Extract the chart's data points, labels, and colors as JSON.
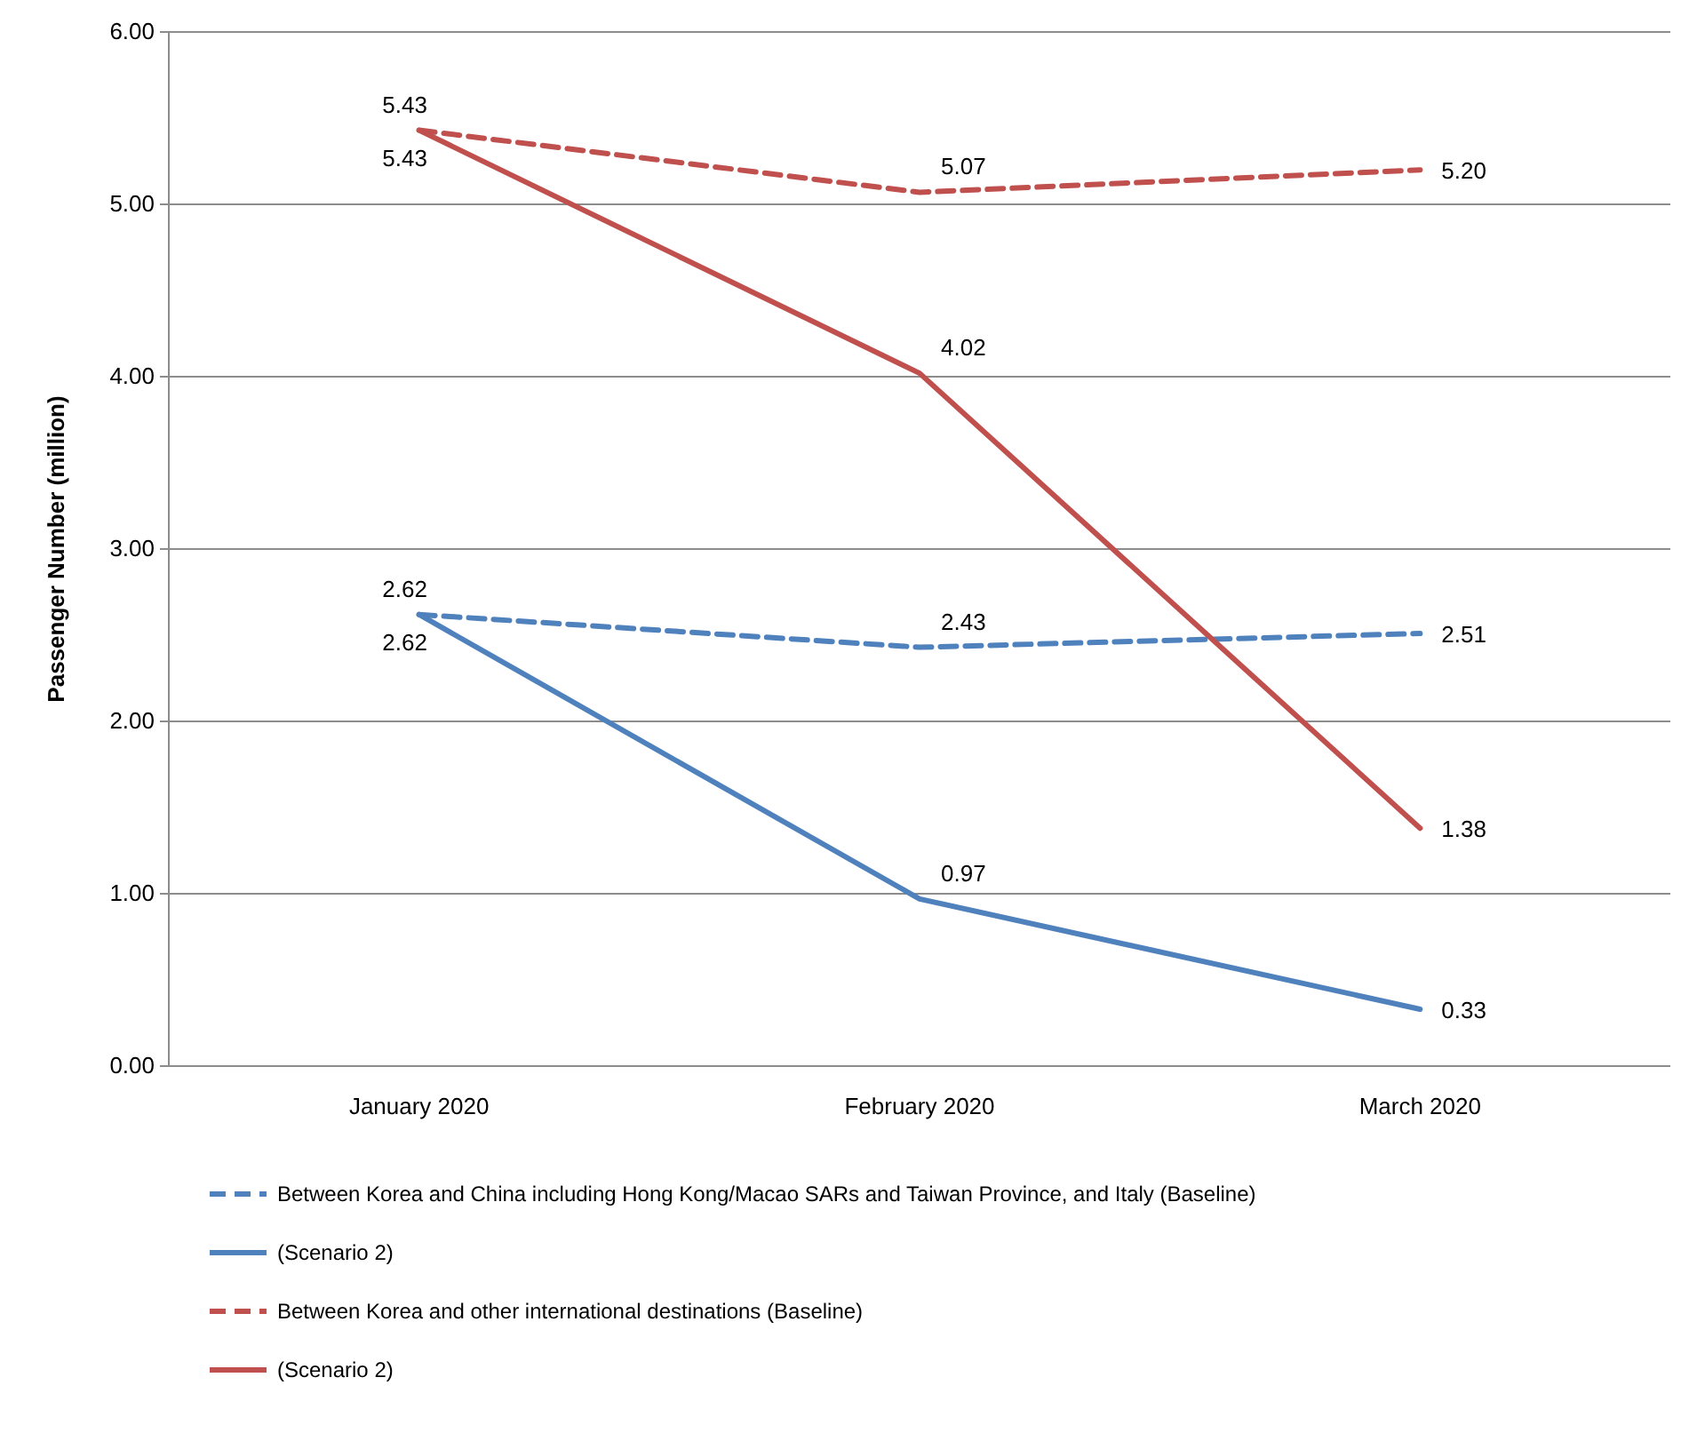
{
  "chart_data": {
    "type": "line",
    "ylabel": "Passenger Number (million)",
    "categories": [
      "January 2020",
      "February 2020",
      "March 2020"
    ],
    "ylim": [
      0,
      6
    ],
    "yticks": [
      {
        "value": 0,
        "label": "0.00"
      },
      {
        "value": 1,
        "label": "1.00"
      },
      {
        "value": 2,
        "label": "2.00"
      },
      {
        "value": 3,
        "label": "3.00"
      },
      {
        "value": 4,
        "label": "4.00"
      },
      {
        "value": 5,
        "label": "5.00"
      },
      {
        "value": 6,
        "label": "6.00"
      }
    ],
    "grid": "y",
    "legend": "bottom",
    "marker": "none",
    "series": [
      {
        "name": "Between Korea and China including Hong Kong/Macao SARs and Taiwan Province, and Italy (Baseline)",
        "color": "#4f81bd",
        "values": [
          2.62,
          2.43,
          2.51
        ],
        "value_labels": [
          "2.62",
          "2.43",
          "2.51"
        ],
        "line_style": "dashed"
      },
      {
        "name": "(Scenario 2)",
        "color": "#4f81bd",
        "values": [
          2.62,
          0.97,
          0.33
        ],
        "value_labels": [
          "2.62",
          "0.97",
          "0.33"
        ],
        "line_style": "solid"
      },
      {
        "name": "Between Korea and other international destinations (Baseline)",
        "color": "#c0504d",
        "values": [
          5.43,
          5.07,
          5.2
        ],
        "value_labels": [
          "5.43",
          "5.07",
          "5.20"
        ],
        "line_style": "dashed"
      },
      {
        "name": "(Scenario 2)",
        "color": "#c0504d",
        "values": [
          5.43,
          4.02,
          1.38
        ],
        "value_labels": [
          "5.43",
          "4.02",
          "1.38"
        ],
        "line_style": "solid"
      }
    ]
  }
}
